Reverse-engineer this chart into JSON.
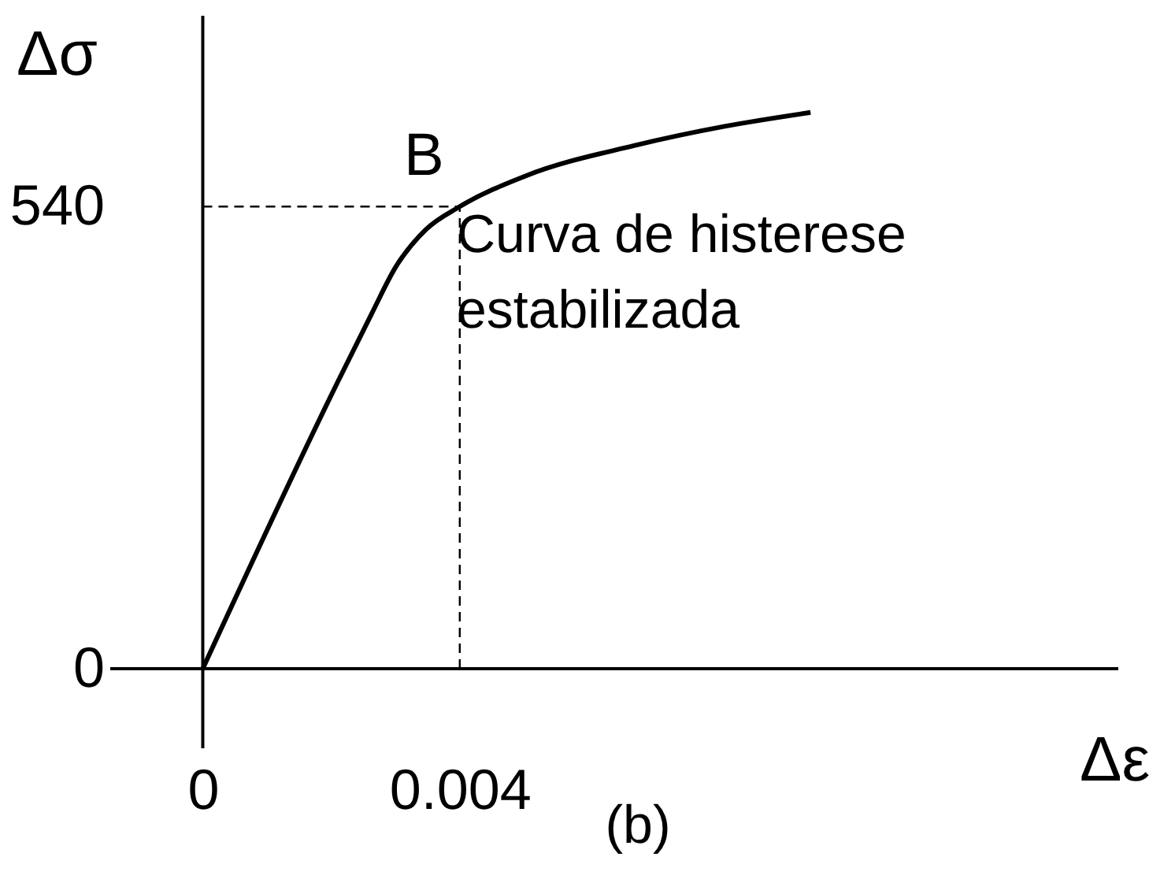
{
  "chart_data": {
    "type": "line",
    "xlabel": "Δε",
    "ylabel": "Δσ",
    "x": [
      0,
      0.0021,
      0.00263,
      0.003,
      0.00347,
      0.004,
      0.00503,
      0.0067,
      0.00814,
      0.00946
    ],
    "series": [
      {
        "color": "#000000",
        "values": [
          0,
          335,
          415,
          469,
          513,
          540,
          576,
          611,
          634,
          650
        ]
      }
    ],
    "xlim": [
      -0.00144,
      0.01425
    ],
    "ylim": [
      -93,
      763
    ],
    "xticks": [
      0,
      0.004
    ],
    "yticks": [
      0,
      540
    ],
    "grid": false,
    "marker": "none",
    "line_style": "solid",
    "ref_lines": [
      {
        "axis": "x",
        "value": 0.004,
        "line_style": "dashed",
        "color": "#000000"
      },
      {
        "axis": "y",
        "value": 540,
        "line_style": "dashed",
        "color": "#000000"
      }
    ],
    "annotations": [
      {
        "text": "B",
        "x": 0.004,
        "y": 540
      },
      "Curva de histerese\nestabilizada",
      "(b)"
    ]
  }
}
